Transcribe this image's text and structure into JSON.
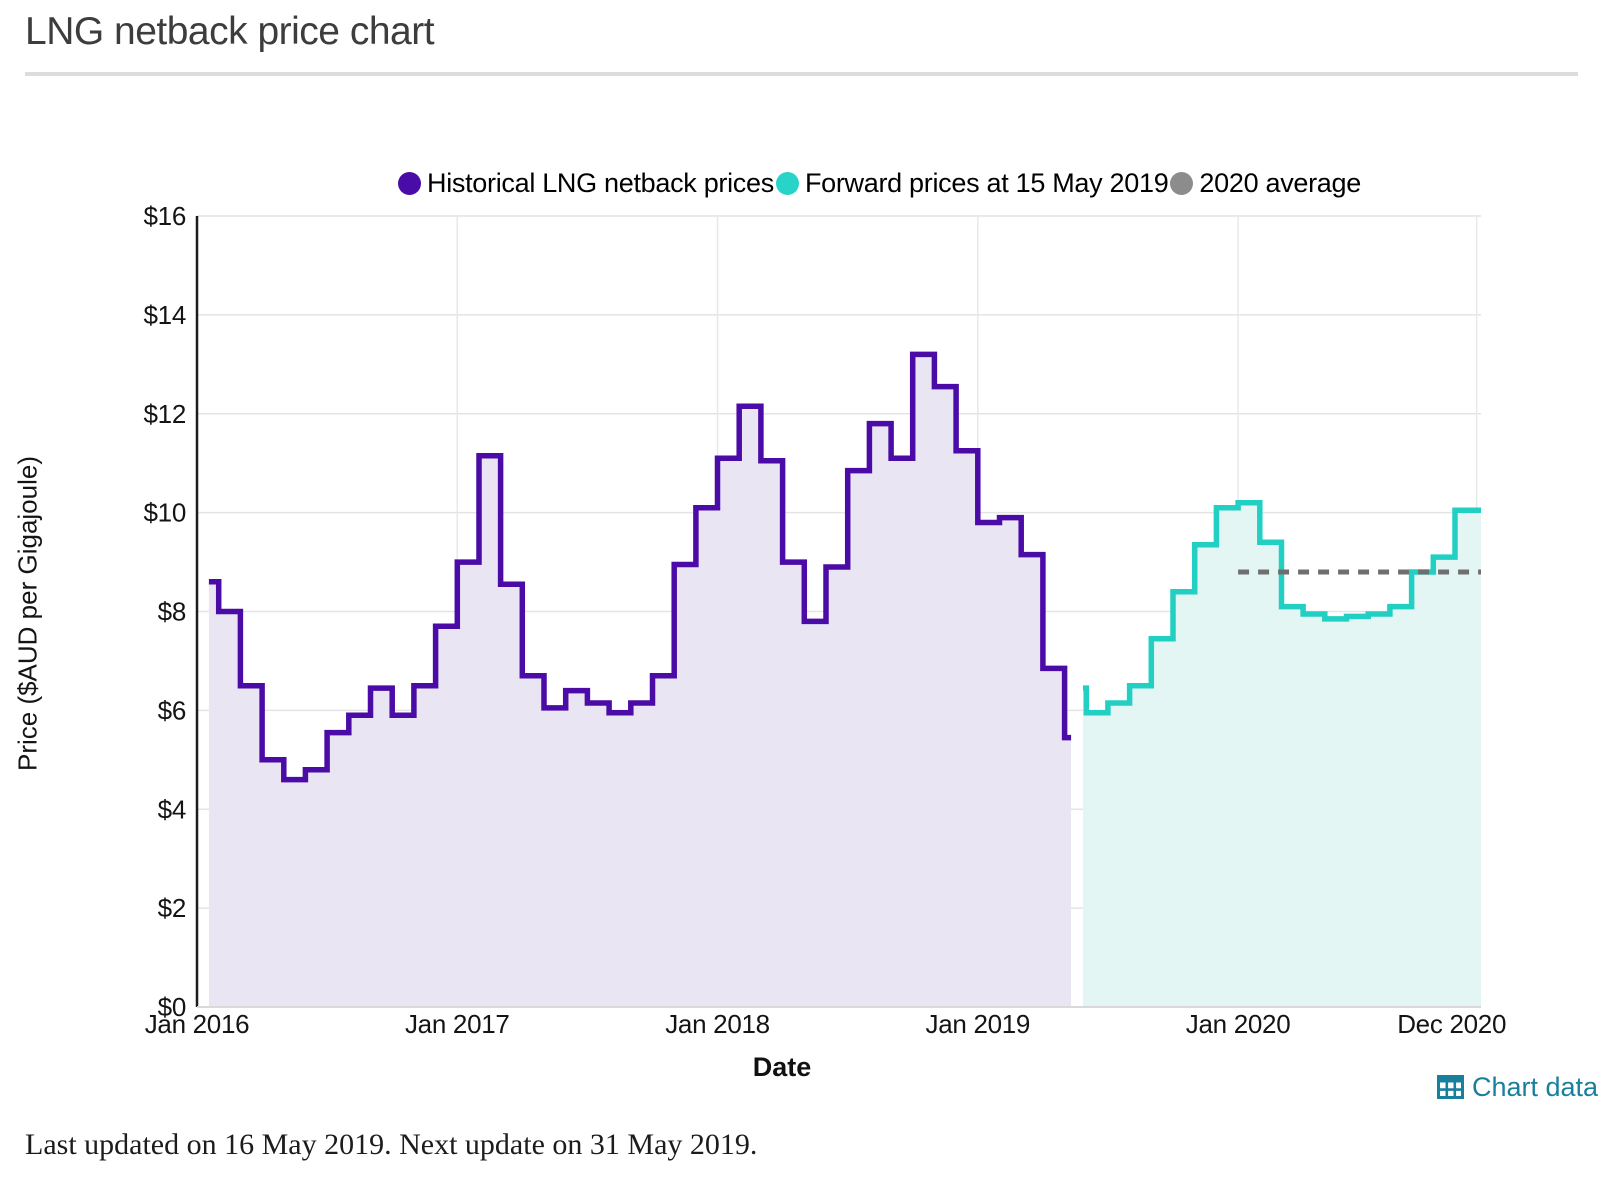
{
  "page": {
    "title": "LNG netback price chart",
    "footer": "Last updated on 16 May 2019. Next update on 31 May 2019."
  },
  "chart": {
    "xlabel": "Date",
    "ylabel": "Price ($AUD per Gigajoule)",
    "chart_data_link_label": "Chart data",
    "legend": [
      {
        "label": "Historical LNG netback prices",
        "color": "#4a0ba6"
      },
      {
        "label": "Forward prices at 15 May 2019",
        "color": "#28d4c7"
      },
      {
        "label": "2020 average",
        "color": "#8c8c8c"
      }
    ]
  },
  "chart_data": {
    "type": "area",
    "step": true,
    "title": "LNG netback price chart",
    "xlabel": "Date",
    "ylabel": "Price ($AUD per Gigajoule)",
    "ylim": [
      0,
      16
    ],
    "grid": true,
    "legend_position": "top",
    "y_ticks": [
      "$0",
      "$2",
      "$4",
      "$6",
      "$8",
      "$10",
      "$12",
      "$14",
      "$16"
    ],
    "x_ticks": [
      {
        "label": "Jan 2016",
        "month": 0
      },
      {
        "label": "Jan 2017",
        "month": 12
      },
      {
        "label": "Jan 2018",
        "month": 24
      },
      {
        "label": "Jan 2019",
        "month": 36
      },
      {
        "label": "Jan 2020",
        "month": 48
      },
      {
        "label": "Dec 2020",
        "month": 59
      }
    ],
    "series": [
      {
        "name": "Historical LNG netback prices",
        "color": "#4a0ba6",
        "fill": "#e9e5f3",
        "start": "Jan 2016",
        "end": "May 2019",
        "values": [
          8.6,
          8.0,
          6.5,
          5.0,
          4.6,
          4.8,
          5.55,
          5.9,
          6.45,
          5.9,
          6.5,
          7.7,
          9.0,
          11.15,
          8.55,
          6.7,
          6.05,
          6.4,
          6.15,
          5.95,
          6.15,
          6.7,
          8.95,
          10.1,
          11.1,
          12.15,
          11.05,
          9.0,
          7.8,
          8.9,
          10.85,
          11.8,
          11.1,
          13.2,
          12.55,
          11.25,
          9.8,
          9.9,
          9.15,
          6.85,
          5.45
        ]
      },
      {
        "name": "Forward prices at 15 May 2019",
        "color": "#22d0c3",
        "fill": "#e4f6f4",
        "start": "May 2019",
        "end": "Dec 2020",
        "values": [
          6.45,
          5.95,
          6.15,
          6.5,
          7.45,
          8.4,
          9.35,
          10.1,
          10.2,
          9.4,
          8.1,
          7.95,
          7.85,
          7.9,
          7.95,
          8.1,
          8.8,
          9.1,
          10.05,
          10.05
        ]
      },
      {
        "name": "2020 average",
        "color": "#6f6f6f",
        "style": "dashed",
        "value": 8.8,
        "from": "Jan 2020",
        "to": "Dec 2020"
      }
    ]
  }
}
